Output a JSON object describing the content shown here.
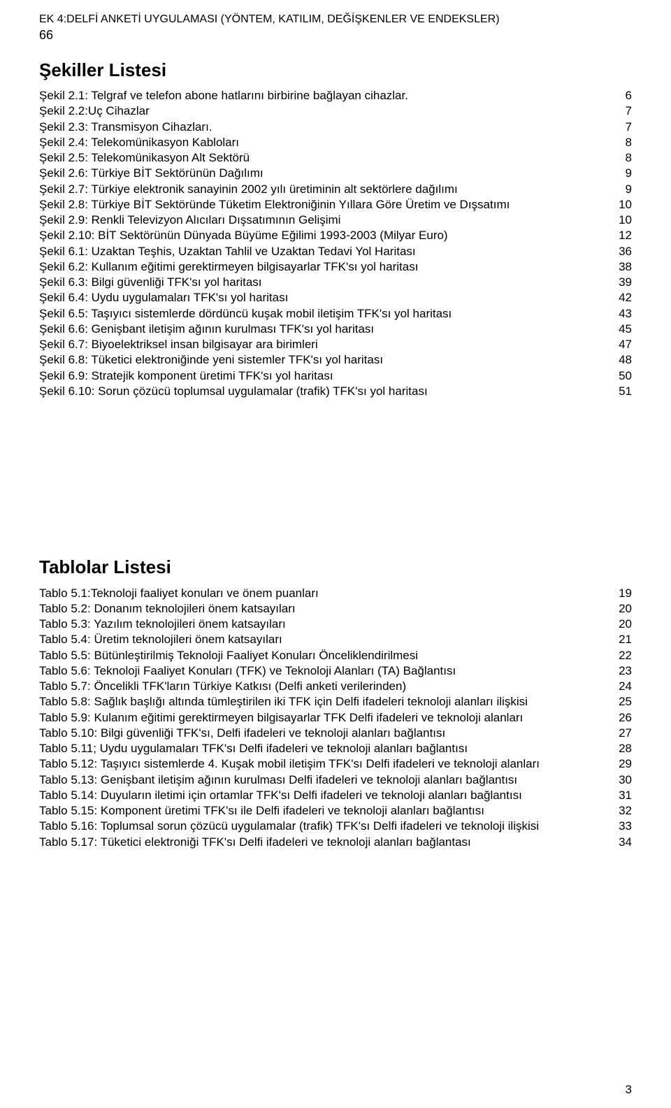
{
  "header": {
    "title_line": "EK 4:DELFİ ANKETİ UYGULAMASI (YÖNTEM, KATILIM, DEĞİŞKENLER VE ENDEKSLER)",
    "page_ref": "66"
  },
  "sections": {
    "figures": {
      "title": "Şekiller Listesi",
      "items": [
        {
          "label": "Şekil 2.1: Telgraf ve telefon abone hatlarını birbirine bağlayan cihazlar.",
          "page": "6"
        },
        {
          "label": "Şekil 2.2:Uç Cihazlar",
          "page": "7"
        },
        {
          "label": "Şekil 2.3: Transmisyon Cihazları.",
          "page": "7"
        },
        {
          "label": "Şekil 2.4: Telekomünikasyon Kabloları",
          "page": "8"
        },
        {
          "label": "Şekil 2.5: Telekomünikasyon Alt Sektörü",
          "page": "8"
        },
        {
          "label": "Şekil 2.6: Türkiye BİT Sektörünün Dağılımı",
          "page": "9"
        },
        {
          "label": "Şekil 2.7: Türkiye elektronik sanayinin 2002 yılı üretiminin alt sektörlere dağılımı",
          "page": "9"
        },
        {
          "label": "Şekil 2.8: Türkiye BİT Sektöründe Tüketim Elektroniğinin Yıllara Göre Üretim ve Dışsatımı",
          "page": "10"
        },
        {
          "label": "Şekil 2.9: Renkli Televizyon Alıcıları Dışsatımının Gelişimi",
          "page": "10"
        },
        {
          "label": "Şekil 2.10: BİT Sektörünün Dünyada Büyüme Eğilimi 1993-2003 (Milyar Euro)",
          "page": "12"
        },
        {
          "label": "Şekil 6.1: Uzaktan Teşhis, Uzaktan Tahlil ve Uzaktan Tedavi Yol Haritası",
          "page": "36"
        },
        {
          "label": "Şekil 6.2: Kullanım eğitimi gerektirmeyen bilgisayarlar TFK'sı yol haritası",
          "page": "38"
        },
        {
          "label": "Şekil 6.3: Bilgi güvenliği TFK'sı yol haritası",
          "page": "39"
        },
        {
          "label": "Şekil 6.4: Uydu uygulamaları TFK'sı yol haritası",
          "page": "42"
        },
        {
          "label": "Şekil 6.5: Taşıyıcı sistemlerde dördüncü kuşak mobil iletişim TFK'sı yol haritası",
          "page": "43"
        },
        {
          "label": "Şekil 6.6: Genişbant iletişim ağının kurulması TFK'sı yol haritası",
          "page": "45"
        },
        {
          "label": "Şekil 6.7: Biyoelektriksel insan bilgisayar ara birimleri",
          "page": "47"
        },
        {
          "label": "Şekil 6.8: Tüketici elektroniğinde yeni sistemler TFK'sı yol haritası",
          "page": "48"
        },
        {
          "label": "Şekil 6.9: Stratejik komponent üretimi TFK'sı yol haritası",
          "page": "50"
        },
        {
          "label": "Şekil 6.10: Sorun çözücü toplumsal uygulamalar (trafik) TFK'sı yol haritası",
          "page": "51"
        }
      ]
    },
    "tables": {
      "title": "Tablolar Listesi",
      "items": [
        {
          "label": "Tablo 5.1:Teknoloji faaliyet konuları ve önem puanları",
          "page": "19"
        },
        {
          "label": "Tablo 5.2: Donanım teknolojileri önem katsayıları",
          "page": "20"
        },
        {
          "label": "Tablo 5.3: Yazılım teknolojileri önem katsayıları",
          "page": "20"
        },
        {
          "label": "Tablo 5.4: Üretim teknolojileri önem katsayıları",
          "page": "21"
        },
        {
          "label": "Tablo 5.5: Bütünleştirilmiş Teknoloji Faaliyet Konuları Önceliklendirilmesi",
          "page": "22"
        },
        {
          "label": "Tablo 5.6: Teknoloji Faaliyet Konuları (TFK) ve Teknoloji Alanları (TA) Bağlantısı",
          "page": "23"
        },
        {
          "label": "Tablo 5.7: Öncelikli TFK'ların Türkiye Katkısı (Delfi anketi verilerinden)",
          "page": "24"
        },
        {
          "label": "Tablo 5.8: Sağlık başlığı altında tümleştirilen iki TFK için Delfi ifadeleri teknoloji alanları ilişkisi",
          "page": "25"
        },
        {
          "label": "Tablo 5.9: Kulanım eğitimi gerektirmeyen bilgisayarlar TFK Delfi ifadeleri ve teknoloji alanları",
          "page": "26"
        },
        {
          "label": "Tablo 5.10: Bilgi güvenliği TFK'sı, Delfi ifadeleri ve teknoloji alanları bağlantısı",
          "page": "27"
        },
        {
          "label": "Tablo 5.11; Uydu uygulamaları TFK'sı Delfi ifadeleri ve teknoloji alanları bağlantısı",
          "page": "28"
        },
        {
          "label": "Tablo 5.12: Taşıyıcı sistemlerde 4. Kuşak mobil iletişim TFK'sı Delfi ifadeleri ve teknoloji alanları",
          "page": "29"
        },
        {
          "label": "Tablo 5.13: Genişbant iletişim ağının kurulması  Delfi ifadeleri ve teknoloji alanları bağlantısı",
          "page": "30"
        },
        {
          "label": "Tablo 5.14: Duyuların iletimi için ortamlar TFK'sı Delfi ifadeleri ve teknoloji alanları bağlantısı",
          "page": "31"
        },
        {
          "label": "Tablo 5.15: Komponent üretimi TFK'sı ile Delfi ifadeleri ve teknoloji alanları bağlantısı",
          "page": "32"
        },
        {
          "label": "Tablo 5.16: Toplumsal sorun çözücü uygulamalar (trafik) TFK'sı Delfi ifadeleri ve teknoloji ilişkisi",
          "page": "33"
        },
        {
          "label": "Tablo 5.17: Tüketici elektroniği TFK'sı Delfi ifadeleri ve teknoloji alanları bağlantası",
          "page": "34"
        }
      ]
    }
  },
  "footer": {
    "page_number": "3"
  }
}
